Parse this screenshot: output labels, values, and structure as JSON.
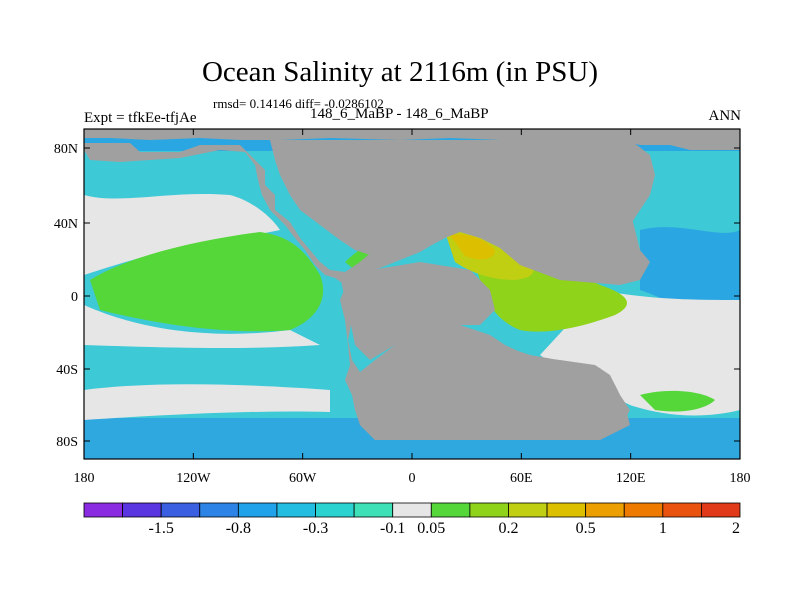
{
  "title": "Ocean Salinity at 2116m (in PSU)",
  "stats": "rmsd= 0.14146  diff= -0.0286102",
  "left_label": "Expt = tfkEe-tfjAe",
  "subtitle": "148_6_MaBP - 148_6_MaBP",
  "right_label": "ANN",
  "x_ticks": [
    "180",
    "120W",
    "60W",
    "0",
    "60E",
    "120E",
    "180"
  ],
  "y_ticks": [
    "80N",
    "40N",
    "0",
    "40S",
    "80S"
  ],
  "colorbar": {
    "colors": [
      "#8a2be2",
      "#5a36e0",
      "#3a5fe0",
      "#2d84e6",
      "#1fa2ea",
      "#22bde0",
      "#2ad3d0",
      "#3ee0b8",
      "#e6e6e6",
      "#55d73a",
      "#8fd31a",
      "#c0cf12",
      "#dcc000",
      "#ec9f00",
      "#ee7a00",
      "#ea5210",
      "#e03a1a"
    ],
    "labels": [
      "-1.5",
      "-0.8",
      "-0.3",
      "-0.1",
      "0.05",
      "0.2",
      "0.5",
      "1",
      "2"
    ]
  },
  "colors": {
    "land": "#a0a0a0",
    "ocean_neutral": "#e6e6e6"
  }
}
